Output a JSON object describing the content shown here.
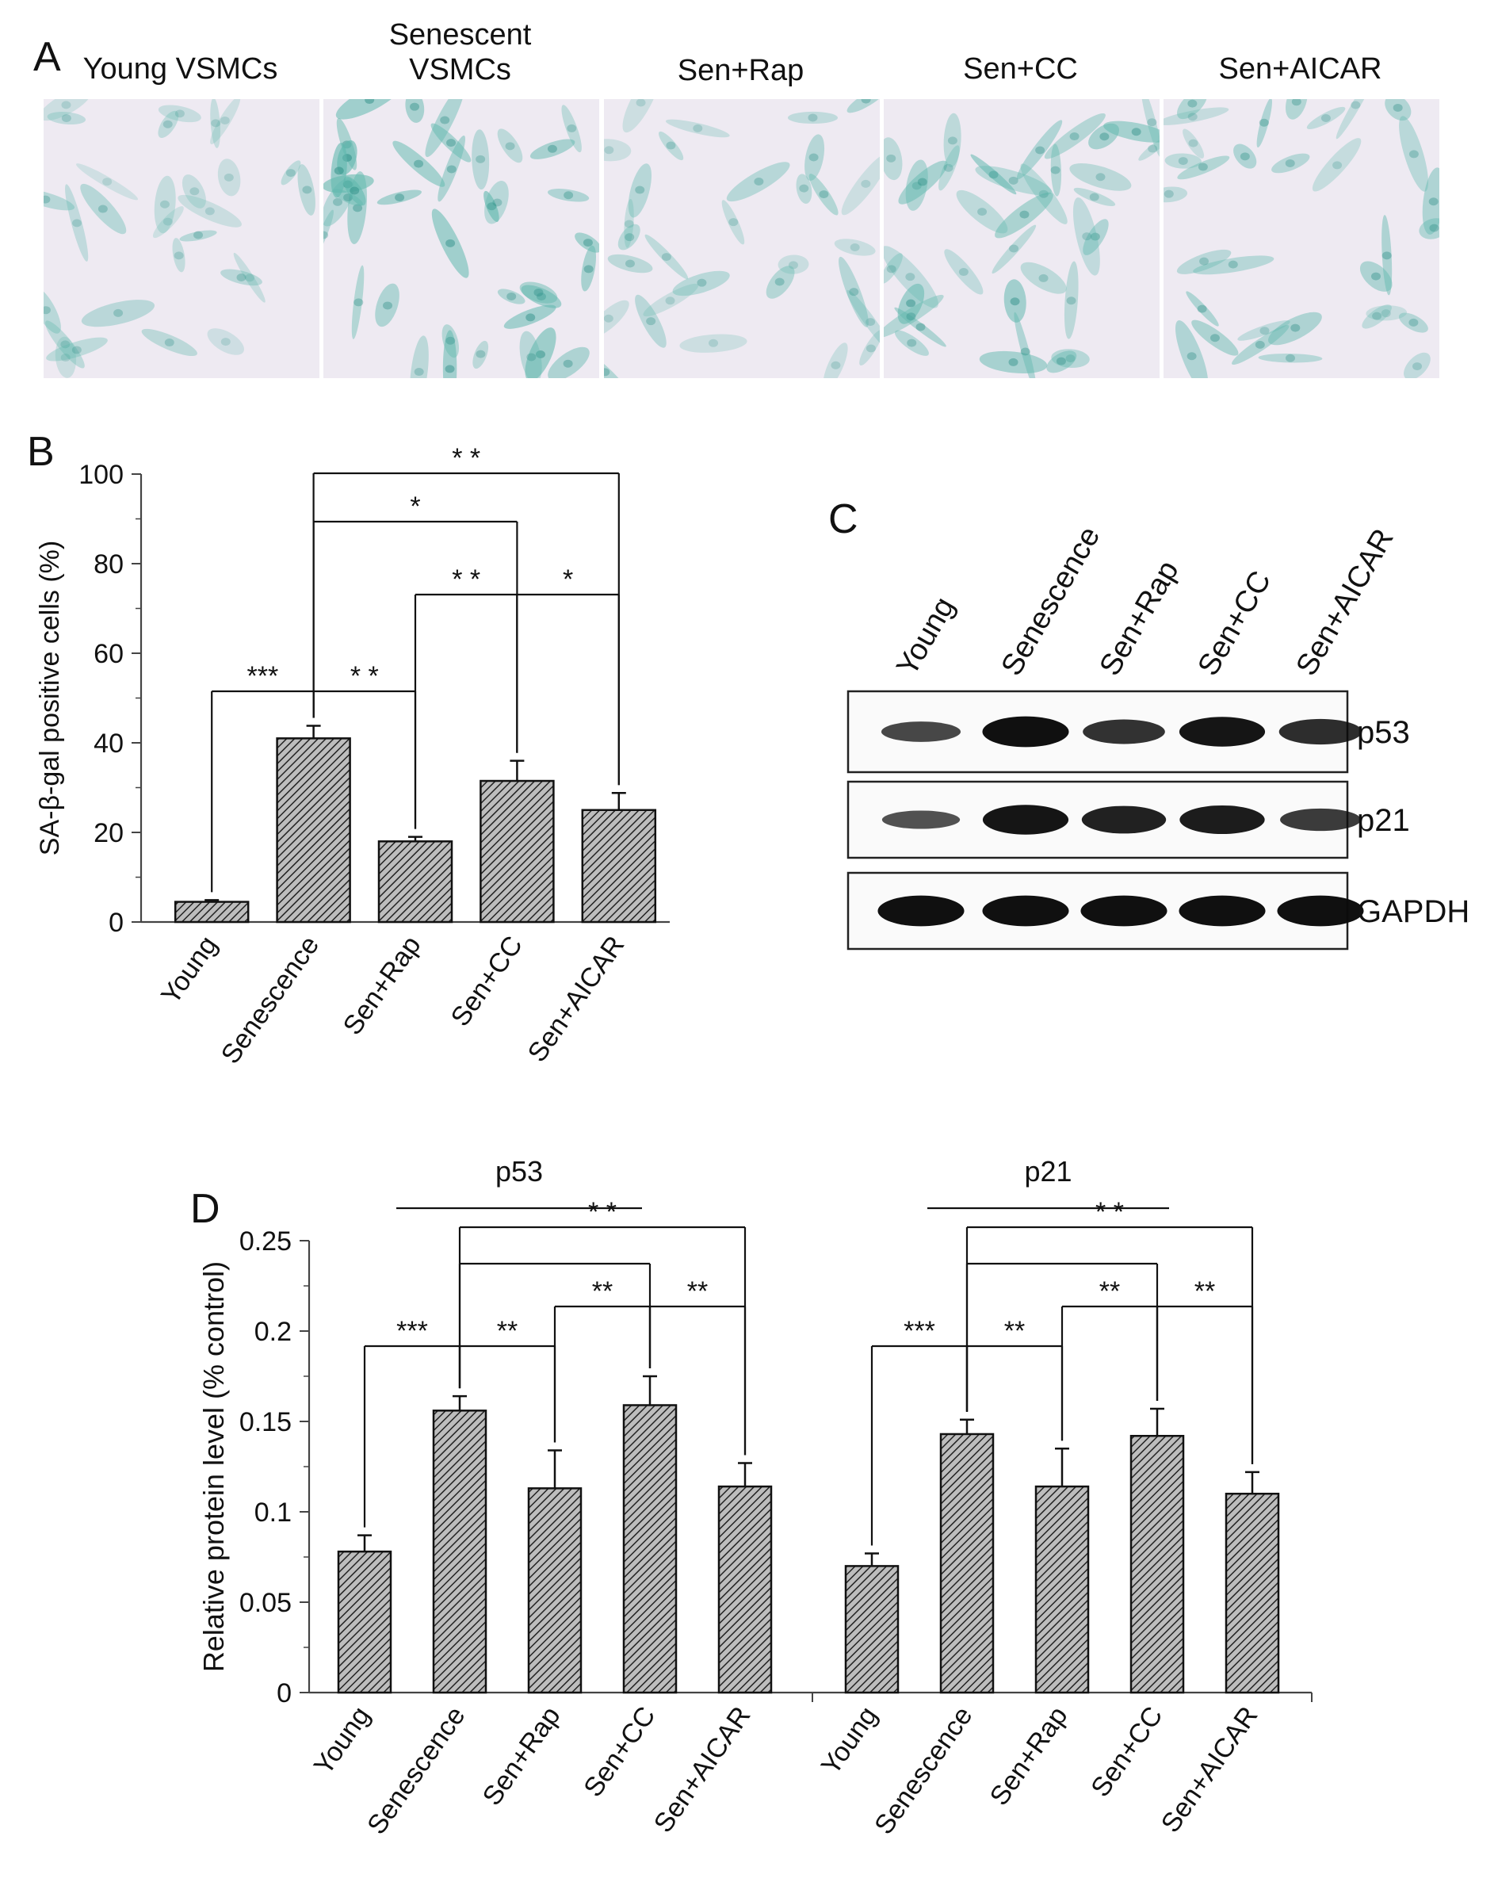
{
  "figure": {
    "panel_labels": {
      "a": "A",
      "b": "B",
      "c": "C",
      "d": "D"
    },
    "panel_a": {
      "images": [
        {
          "title_lines": [
            "Young VSMCs"
          ],
          "density": 0.45
        },
        {
          "title_lines": [
            "Senescent",
            "VSMCs"
          ],
          "density": 0.95
        },
        {
          "title_lines": [
            "Sen+Rap"
          ],
          "density": 0.55
        },
        {
          "title_lines": [
            "Sen+CC"
          ],
          "density": 0.8
        },
        {
          "title_lines": [
            "Sen+AICAR"
          ],
          "density": 0.65
        }
      ],
      "stain_color": "#5fb8ad",
      "background_color": "#eeeaf2"
    },
    "panel_c": {
      "lane_labels": [
        "Young",
        "Senescence",
        "Sen+Rap",
        "Sen+CC",
        "Sen+AICAR"
      ],
      "blots": [
        {
          "label": "p53",
          "band_strength": [
            0.45,
            0.95,
            0.65,
            0.9,
            0.7
          ]
        },
        {
          "label": "p21",
          "band_strength": [
            0.35,
            0.9,
            0.8,
            0.85,
            0.55
          ]
        },
        {
          "label": "GAPDH",
          "band_strength": [
            0.95,
            0.95,
            0.95,
            0.95,
            0.95
          ]
        }
      ]
    }
  },
  "chart_data": [
    {
      "panel": "B",
      "type": "bar",
      "categories": [
        "Young",
        "Senescence",
        "Sen+Rap",
        "Sen+CC",
        "Sen+AICAR"
      ],
      "series": [
        {
          "values": [
            4.5,
            41,
            18,
            31.5,
            25
          ],
          "errors": [
            0.4,
            2.8,
            1.0,
            4.5,
            3.8
          ]
        }
      ],
      "ylabel": "SA-β-gal positive cells (%)",
      "ylim": [
        0,
        100
      ],
      "yticks": [
        0,
        20,
        40,
        60,
        80,
        100
      ],
      "significance": [
        {
          "from": "Young",
          "to": "Senescence",
          "label": "***"
        },
        {
          "from": "Senescence",
          "to": "Sen+Rap",
          "label": "* *"
        },
        {
          "from": "Sen+Rap",
          "to": "Sen+CC",
          "label": "* *"
        },
        {
          "from": "Sen+CC",
          "to": "Sen+AICAR",
          "label": "*"
        },
        {
          "from": "Senescence",
          "to": "Sen+CC",
          "label": "*"
        },
        {
          "from": "Senescence",
          "to": "Sen+AICAR",
          "label": "* *"
        }
      ]
    },
    {
      "panel": "D",
      "type": "bar",
      "ylabel": "Relative protein level (% control)",
      "ylim": [
        0,
        0.25
      ],
      "yticks": [
        "0",
        "0.05",
        "0.1",
        "0.15",
        "0.2",
        "0.25"
      ],
      "groups": [
        {
          "name": "p53",
          "categories": [
            "Young",
            "Senescence",
            "Sen+Rap",
            "Sen+CC",
            "Sen+AICAR"
          ],
          "values": [
            0.078,
            0.156,
            0.113,
            0.159,
            0.114
          ],
          "errors": [
            0.009,
            0.008,
            0.021,
            0.016,
            0.013
          ],
          "significance": [
            {
              "from": "Young",
              "to": "Senescence",
              "label": "***"
            },
            {
              "from": "Senescence",
              "to": "Sen+Rap",
              "label": "**"
            },
            {
              "from": "Sen+Rap",
              "to": "Sen+CC",
              "label": "**"
            },
            {
              "from": "Sen+CC",
              "to": "Sen+AICAR",
              "label": "**"
            },
            {
              "from": "Senescence",
              "to": "Sen+CC",
              "label": ""
            },
            {
              "from": "Senescence",
              "to": "Sen+AICAR",
              "label": "* *"
            }
          ]
        },
        {
          "name": "p21",
          "categories": [
            "Young",
            "Senescence",
            "Sen+Rap",
            "Sen+CC",
            "Sen+AICAR"
          ],
          "values": [
            0.07,
            0.143,
            0.114,
            0.142,
            0.11
          ],
          "errors": [
            0.007,
            0.008,
            0.021,
            0.015,
            0.012
          ],
          "significance": [
            {
              "from": "Young",
              "to": "Senescence",
              "label": "***"
            },
            {
              "from": "Senescence",
              "to": "Sen+Rap",
              "label": "**"
            },
            {
              "from": "Sen+Rap",
              "to": "Sen+CC",
              "label": "**"
            },
            {
              "from": "Sen+CC",
              "to": "Sen+AICAR",
              "label": "**"
            },
            {
              "from": "Senescence",
              "to": "Sen+CC",
              "label": ""
            },
            {
              "from": "Senescence",
              "to": "Sen+AICAR",
              "label": "* *"
            }
          ]
        }
      ]
    }
  ]
}
